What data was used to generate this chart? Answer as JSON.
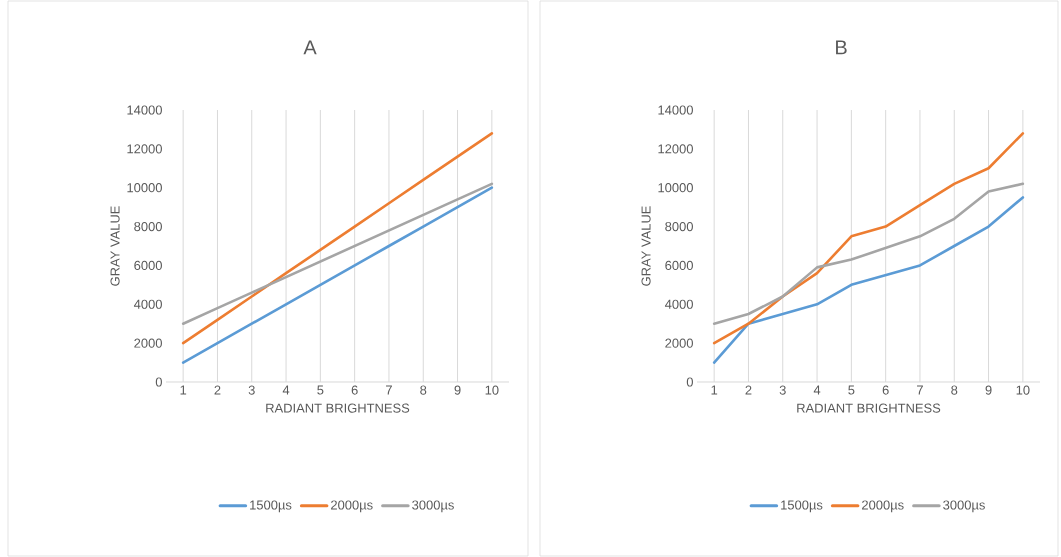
{
  "chart_data": [
    {
      "type": "line",
      "title": "A",
      "xlabel": "RADIANT BRIGHTNESS",
      "ylabel": "GRAY VALUE",
      "categories": [
        "1",
        "2",
        "3",
        "4",
        "5",
        "6",
        "7",
        "8",
        "9",
        "10"
      ],
      "ylim": [
        0,
        14000
      ],
      "yticks": [
        0,
        2000,
        4000,
        6000,
        8000,
        10000,
        12000,
        14000
      ],
      "grid": "x",
      "legend": "bottom",
      "marker": "none",
      "line_style": "solid",
      "series": [
        {
          "name": "1500µs",
          "color": "#5b9bd5",
          "values": [
            1000,
            2000,
            3000,
            4000,
            5000,
            6000,
            7000,
            8000,
            9000,
            10000
          ]
        },
        {
          "name": "2000µs",
          "color": "#ed7d31",
          "values": [
            2000,
            3200,
            4400,
            5600,
            6800,
            8000,
            9200,
            10400,
            11600,
            12800
          ]
        },
        {
          "name": "3000µs",
          "color": "#a5a5a5",
          "values": [
            3000,
            3800,
            4600,
            5400,
            6200,
            7000,
            7800,
            8600,
            9400,
            10200
          ]
        }
      ]
    },
    {
      "type": "line",
      "title": "B",
      "xlabel": "RADIANT BRIGHTNESS",
      "ylabel": "GRAY VALUE",
      "categories": [
        "1",
        "2",
        "3",
        "4",
        "5",
        "6",
        "7",
        "8",
        "9",
        "10"
      ],
      "ylim": [
        0,
        14000
      ],
      "yticks": [
        0,
        2000,
        4000,
        6000,
        8000,
        10000,
        12000,
        14000
      ],
      "grid": "x",
      "legend": "bottom",
      "marker": "none",
      "line_style": "solid",
      "series": [
        {
          "name": "1500µs",
          "color": "#5b9bd5",
          "values": [
            1000,
            3000,
            3500,
            4000,
            5000,
            5500,
            6000,
            7000,
            8000,
            9500
          ]
        },
        {
          "name": "2000µs",
          "color": "#ed7d31",
          "values": [
            2000,
            3000,
            4400,
            5600,
            7500,
            8000,
            9100,
            10200,
            11000,
            12800
          ]
        },
        {
          "name": "3000µs",
          "color": "#a5a5a5",
          "values": [
            3000,
            3500,
            4400,
            5900,
            6300,
            6900,
            7500,
            8400,
            9800,
            10200
          ]
        }
      ]
    }
  ]
}
